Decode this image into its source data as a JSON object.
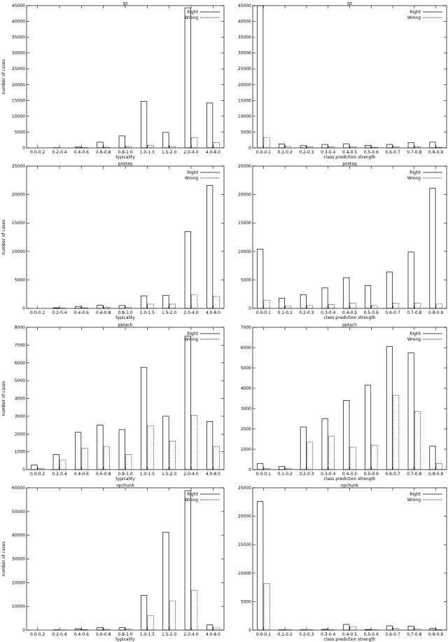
{
  "chart_data": [
    {
      "type": "bar",
      "title": "gs",
      "xlabel": "typicality",
      "ylabel": "number of cases",
      "ylim": [
        0,
        45000
      ],
      "yticks": [
        0,
        5000,
        10000,
        15000,
        20000,
        25000,
        30000,
        35000,
        40000,
        45000
      ],
      "categories": [
        "0.0-0.2",
        "0.2-0.4",
        "0.4-0.6",
        "0.6-0.8",
        "0.8-1.0",
        "1.0-1.5",
        "1.5-2.0",
        "2.0-4.0",
        "4.0-8.0"
      ],
      "series": [
        {
          "name": "Right",
          "line": "solid",
          "values": [
            0,
            50,
            250,
            1800,
            3800,
            14700,
            4900,
            44300,
            14200
          ]
        },
        {
          "name": "Wrong",
          "line": "dashed",
          "values": [
            0,
            0,
            100,
            200,
            400,
            800,
            500,
            3200,
            1700
          ]
        }
      ],
      "legend": "top-right",
      "grid": false
    },
    {
      "type": "bar",
      "title": "gs",
      "xlabel": "class prediction strength",
      "ylabel": "",
      "ylim": [
        0,
        45000
      ],
      "yticks": [
        0,
        5000,
        10000,
        15000,
        20000,
        25000,
        30000,
        35000,
        40000,
        45000
      ],
      "categories": [
        "0.0-0.1",
        "0.1-0.2",
        "0.2-0.3",
        "0.3-0.4",
        "0.4-0.5",
        "0.5-0.6",
        "0.6-0.7",
        "0.7-0.8",
        "0.8-0.9"
      ],
      "series": [
        {
          "name": "Right",
          "line": "solid",
          "values": [
            45000,
            1200,
            700,
            1100,
            1300,
            800,
            1100,
            1700,
            1800
          ]
        },
        {
          "name": "Wrong",
          "line": "dashed",
          "values": [
            3300,
            500,
            300,
            300,
            300,
            200,
            300,
            300,
            200
          ]
        }
      ],
      "legend": "top-right",
      "grid": false
    },
    {
      "type": "bar",
      "title": "postag",
      "xlabel": "typicality",
      "ylabel": "number of cases",
      "ylim": [
        0,
        25000
      ],
      "yticks": [
        0,
        5000,
        10000,
        15000,
        20000,
        25000
      ],
      "categories": [
        "0.0-0.2",
        "0.2-0.4",
        "0.4-0.6",
        "0.6-0.8",
        "0.8-1.0",
        "1.0-1.5",
        "1.5-2.0",
        "2.0-4.0",
        "4.0-8.0"
      ],
      "series": [
        {
          "name": "Right",
          "line": "solid",
          "values": [
            0,
            100,
            350,
            550,
            500,
            2200,
            2300,
            13500,
            21600
          ]
        },
        {
          "name": "Wrong",
          "line": "dashed",
          "values": [
            0,
            50,
            100,
            150,
            200,
            750,
            750,
            2400,
            2100
          ]
        }
      ],
      "legend": "top-right",
      "grid": false
    },
    {
      "type": "bar",
      "title": "postag",
      "xlabel": "class prediction strength",
      "ylabel": "",
      "ylim": [
        0,
        25000
      ],
      "yticks": [
        0,
        5000,
        10000,
        15000,
        20000,
        25000
      ],
      "categories": [
        "0.0-0.1",
        "0.1-0.2",
        "0.2-0.3",
        "0.3-0.4",
        "0.4-0.5",
        "0.5-0.6",
        "0.6-0.7",
        "0.7-0.8",
        "0.8-0.9"
      ],
      "series": [
        {
          "name": "Right",
          "line": "solid",
          "values": [
            10400,
            1800,
            2400,
            3600,
            5400,
            4000,
            6400,
            9900,
            21100
          ]
        },
        {
          "name": "Wrong",
          "line": "dashed",
          "values": [
            1400,
            400,
            500,
            700,
            900,
            500,
            900,
            900,
            800
          ]
        }
      ],
      "legend": "top-right",
      "grid": false
    },
    {
      "type": "bar",
      "title": "pptach",
      "xlabel": "typicality",
      "ylabel": "number of cases",
      "ylim": [
        0,
        8000
      ],
      "yticks": [
        0,
        1000,
        2000,
        3000,
        4000,
        5000,
        6000,
        7000,
        8000
      ],
      "categories": [
        "0.0-0.2",
        "0.2-0.4",
        "0.4-0.6",
        "0.6-0.8",
        "0.8-1.0",
        "1.0-1.5",
        "1.5-2.0",
        "2.0-4.0",
        "4.0-8.0"
      ],
      "series": [
        {
          "name": "Right",
          "line": "solid",
          "values": [
            250,
            850,
            2100,
            2500,
            2250,
            5750,
            3000,
            7500,
            2700
          ]
        },
        {
          "name": "Wrong",
          "line": "dashed",
          "values": [
            50,
            550,
            1200,
            1300,
            850,
            2450,
            1600,
            3050,
            1300
          ]
        }
      ],
      "legend": "top-right",
      "grid": false
    },
    {
      "type": "bar",
      "title": "pptach",
      "xlabel": "class prediction strength",
      "ylabel": "",
      "ylim": [
        0,
        7000
      ],
      "yticks": [
        0,
        1000,
        2000,
        3000,
        4000,
        5000,
        6000,
        7000
      ],
      "categories": [
        "0.0-0.1",
        "0.1-0.2",
        "0.2-0.3",
        "0.3-0.4",
        "0.4-0.5",
        "0.5-0.6",
        "0.6-0.7",
        "0.7-0.8",
        "0.8-0.9"
      ],
      "series": [
        {
          "name": "Right",
          "line": "solid",
          "values": [
            300,
            150,
            2100,
            2500,
            3400,
            4150,
            6050,
            5750,
            1150
          ]
        },
        {
          "name": "Wrong",
          "line": "dashed",
          "values": [
            50,
            50,
            1350,
            1650,
            1100,
            1200,
            3650,
            2850,
            300
          ]
        }
      ],
      "legend": "top-right",
      "grid": false
    },
    {
      "type": "bar",
      "title": "npchunk",
      "xlabel": "typicality",
      "ylabel": "number of cases",
      "ylim": [
        0,
        60000
      ],
      "yticks": [
        0,
        10000,
        20000,
        30000,
        40000,
        50000,
        60000
      ],
      "categories": [
        "0.0-0.2",
        "0.2-0.4",
        "0.4-0.6",
        "0.6-0.8",
        "0.8-1.0",
        "1.0-1.5",
        "1.5-2.0",
        "2.0-4.0",
        "4.0-8.0"
      ],
      "series": [
        {
          "name": "Right",
          "line": "solid",
          "values": [
            0,
            100,
            600,
            1000,
            1000,
            14600,
            41300,
            58800,
            2200
          ]
        },
        {
          "name": "Wrong",
          "line": "dashed",
          "values": [
            0,
            50,
            200,
            300,
            400,
            6000,
            12300,
            16800,
            900
          ]
        }
      ],
      "legend": "top-right",
      "grid": false
    },
    {
      "type": "bar",
      "title": "npchunk",
      "xlabel": "class prediction strength",
      "ylabel": "",
      "ylim": [
        0,
        25000
      ],
      "yticks": [
        0,
        5000,
        10000,
        15000,
        20000,
        25000
      ],
      "categories": [
        "0.0-0.1",
        "0.1-0.2",
        "0.2-0.3",
        "0.3-0.4",
        "0.4-0.5",
        "0.5-0.6",
        "0.6-0.7",
        "0.7-0.8",
        "0.8-0.9"
      ],
      "series": [
        {
          "name": "Right",
          "line": "solid",
          "values": [
            22600,
            50,
            50,
            150,
            1000,
            100,
            750,
            700,
            300
          ]
        },
        {
          "name": "Wrong",
          "line": "dashed",
          "values": [
            8200,
            50,
            50,
            50,
            600,
            50,
            300,
            250,
            100
          ]
        }
      ],
      "legend": "top-right",
      "grid": false
    }
  ]
}
